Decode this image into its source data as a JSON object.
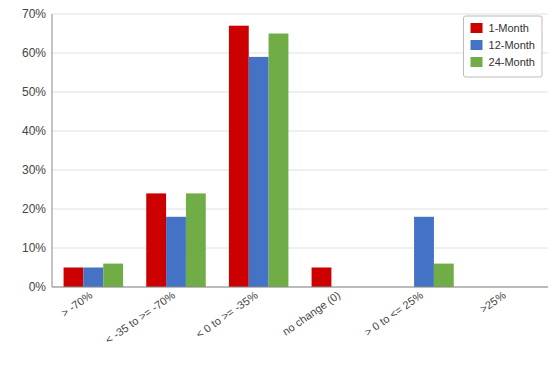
{
  "chart_data": {
    "type": "bar",
    "categories": [
      "> -70%",
      "< -35 to >= -70%",
      "< 0 to >= -35%",
      "no change (0)",
      "> 0 to <= 25%",
      ">25%"
    ],
    "series": [
      {
        "name": "1-Month",
        "color": "#CC0000",
        "values": [
          5,
          24,
          67,
          5,
          0,
          0
        ]
      },
      {
        "name": "12-Month",
        "color": "#4472C4",
        "values": [
          5,
          18,
          59,
          0,
          18,
          0
        ]
      },
      {
        "name": "24-Month",
        "color": "#70AD47",
        "values": [
          6,
          24,
          65,
          0,
          6,
          0
        ]
      }
    ],
    "ylim": [
      0,
      70
    ],
    "yticks": [
      {
        "value": 0,
        "label": "0%"
      },
      {
        "value": 10,
        "label": "10%"
      },
      {
        "value": 20,
        "label": "20%"
      },
      {
        "value": 30,
        "label": "30%"
      },
      {
        "value": 40,
        "label": "40%"
      },
      {
        "value": 50,
        "label": "50%"
      },
      {
        "value": 60,
        "label": "60%"
      },
      {
        "value": 70,
        "label": "70%"
      }
    ],
    "grid": true,
    "legend": "upper right"
  }
}
